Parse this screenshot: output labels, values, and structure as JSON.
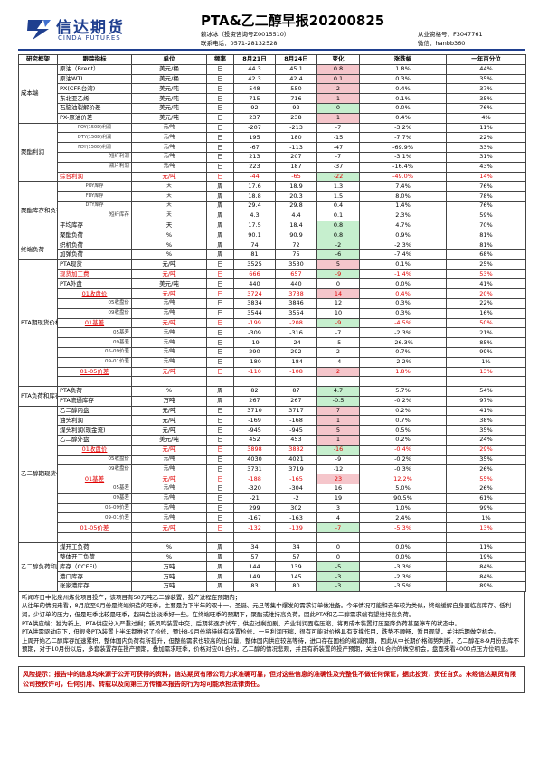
{
  "header": {
    "logo_cn": "信达期货",
    "logo_en": "CINDA FUTURES",
    "title": "PTA&乙二醇早报20200825",
    "analyst": "赖冰冰（投资咨询号Z0015510）",
    "phone": "联系电话：0571-28132528",
    "qualification": "从业资格号：F3047761",
    "wechat": "微信：hanbb360"
  },
  "columns": [
    "研究框架",
    "跟踪指标",
    "单位",
    "频率",
    "8月21日",
    "8月24日",
    "变化",
    "涨跌幅",
    "一年百分位"
  ],
  "rows": [
    {
      "cat": "成本端",
      "span": 6,
      "ind": "原油（Brent）",
      "u": "美元/桶",
      "f": "日",
      "a": "44.3",
      "b": "45.1",
      "c": "0.8",
      "d": "1.8%",
      "e": "44%",
      "cc": "pos"
    },
    {
      "ind": "原油WTI",
      "u": "美元/桶",
      "f": "日",
      "a": "42.3",
      "b": "42.4",
      "c": "0.1",
      "d": "0.3%",
      "e": "35%",
      "cc": "pos"
    },
    {
      "ind": "PX(CFR台湾)",
      "u": "美元/吨",
      "f": "日",
      "a": "548",
      "b": "550",
      "c": "2",
      "d": "0.4%",
      "e": "37%",
      "cc": "pos"
    },
    {
      "ind": "东北亚乙烯",
      "u": "美元/吨",
      "f": "日",
      "a": "715",
      "b": "716",
      "c": "1",
      "d": "0.1%",
      "e": "35%",
      "cc": "pos"
    },
    {
      "ind": "石脑油裂解价差",
      "u": "美元/吨",
      "f": "日",
      "a": "92",
      "b": "92",
      "c": "0",
      "d": "0.0%",
      "e": "76%",
      "cc": "zero"
    },
    {
      "ind": "PX-原油价差",
      "u": "美元/吨",
      "f": "日",
      "a": "237",
      "b": "238",
      "c": "1",
      "d": "0.4%",
      "e": "4%",
      "cc": "pos"
    },
    {
      "cat": "聚酯利润",
      "span": 6,
      "ind": "POY(150D)利润",
      "u": "元/吨",
      "f": "日",
      "a": "-207",
      "b": "-213",
      "c": "-7",
      "d": "-3.2%",
      "e": "11%",
      "cc": "",
      "sub": "sub"
    },
    {
      "ind": "DTY(150D)利润",
      "u": "元/吨",
      "f": "日",
      "a": "195",
      "b": "180",
      "c": "-15",
      "d": "-7.7%",
      "e": "22%",
      "cc": "",
      "sub": "sub"
    },
    {
      "ind": "FDY(150D)利润",
      "u": "元/吨",
      "f": "日",
      "a": "-67",
      "b": "-113",
      "c": "-47",
      "d": "-69.9%",
      "e": "33%",
      "cc": "",
      "sub": "sub"
    },
    {
      "ind": "短纤利润",
      "u": "元/吨",
      "f": "日",
      "a": "213",
      "b": "207",
      "c": "-7",
      "d": "-3.1%",
      "e": "31%",
      "cc": "",
      "sub": "sub-l"
    },
    {
      "ind": "瓶片利润",
      "u": "元/吨",
      "f": "日",
      "a": "223",
      "b": "187",
      "c": "-37",
      "d": "-16.4%",
      "e": "43%",
      "cc": "",
      "sub": "sub-l"
    },
    {
      "ind": "综合利润",
      "u": "元/吨",
      "f": "日",
      "a": "-44",
      "b": "-65",
      "c": "-22",
      "d": "-49.0%",
      "e": "14%",
      "cc": "neg",
      "red": true
    },
    {
      "cat": "聚酯库存和负荷",
      "span": 6,
      "ind": "POY库存",
      "u": "天",
      "f": "周",
      "a": "17.6",
      "b": "18.9",
      "c": "1.3",
      "d": "7.4%",
      "e": "76%",
      "cc": "",
      "sub": "sub"
    },
    {
      "ind": "FDY库存",
      "u": "天",
      "f": "周",
      "a": "18.8",
      "b": "20.3",
      "c": "1.5",
      "d": "8.0%",
      "e": "78%",
      "cc": "",
      "sub": "sub"
    },
    {
      "ind": "DTY库存",
      "u": "天",
      "f": "周",
      "a": "29.4",
      "b": "29.8",
      "c": "0.4",
      "d": "1.4%",
      "e": "76%",
      "cc": "",
      "sub": "sub"
    },
    {
      "ind": "短纤库存",
      "u": "天",
      "f": "周",
      "a": "4.3",
      "b": "4.4",
      "c": "0.1",
      "d": "2.3%",
      "e": "59%",
      "cc": "",
      "sub": "sub-l"
    },
    {
      "ind": "平均库存",
      "u": "天",
      "f": "周",
      "a": "17.5",
      "b": "18.4",
      "c": "0.8",
      "d": "4.7%",
      "e": "70%",
      "cc": "neg"
    },
    {
      "ind": "聚酯负荷",
      "u": "%",
      "f": "周",
      "a": "90.1",
      "b": "90.9",
      "c": "0.8",
      "d": "0.9%",
      "e": "81%",
      "cc": "neg"
    },
    {
      "cat": "终端负荷",
      "span": 2,
      "ind": "织机负荷",
      "u": "%",
      "f": "周",
      "a": "74",
      "b": "72",
      "c": "-2",
      "d": "-2.3%",
      "e": "81%",
      "cc": "neg"
    },
    {
      "ind": "加弹负荷",
      "u": "%",
      "f": "周",
      "a": "81",
      "b": "75",
      "c": "-6",
      "d": "-7.4%",
      "e": "68%",
      "cc": "neg"
    },
    {
      "cat": "PTA期现货价格和价差",
      "span": 13,
      "ind": "PTA现货",
      "u": "元/吨",
      "f": "日",
      "a": "3525",
      "b": "3530",
      "c": "5",
      "d": "0.1%",
      "e": "25%",
      "cc": "pos"
    },
    {
      "ind": "现货加工费",
      "u": "元/吨",
      "f": "日",
      "a": "666",
      "b": "657",
      "c": "-9",
      "d": "-1.4%",
      "e": "53%",
      "cc": "neg",
      "red": true
    },
    {
      "ind": "PTA外盘",
      "u": "美元/吨",
      "f": "日",
      "a": "440",
      "b": "440",
      "c": "0",
      "d": "0.0%",
      "e": "41%",
      "cc": ""
    },
    {
      "ind": "01收盘价",
      "u": "元/吨",
      "f": "日",
      "a": "3724",
      "b": "3738",
      "c": "14",
      "d": "0.4%",
      "e": "20%",
      "cc": "pos",
      "red": true,
      "ulr": true,
      "center": true
    },
    {
      "ind": "05收盘价",
      "u": "元/吨",
      "f": "日",
      "a": "3834",
      "b": "3846",
      "c": "12",
      "d": "0.3%",
      "e": "22%",
      "cc": "",
      "sub": "sub-l"
    },
    {
      "ind": "09收盘价",
      "u": "元/吨",
      "f": "日",
      "a": "3544",
      "b": "3554",
      "c": "10",
      "d": "0.3%",
      "e": "16%",
      "cc": "",
      "sub": "sub-l"
    },
    {
      "ind": "01基差",
      "u": "元/吨",
      "f": "日",
      "a": "-199",
      "b": "-208",
      "c": "-9",
      "d": "-4.5%",
      "e": "50%",
      "cc": "neg",
      "red": true,
      "ulr": true,
      "center": true
    },
    {
      "ind": "05基差",
      "u": "元/吨",
      "f": "日",
      "a": "-309",
      "b": "-316",
      "c": "-7",
      "d": "-2.3%",
      "e": "21%",
      "cc": "",
      "sub": "sub-l"
    },
    {
      "ind": "09基差",
      "u": "元/吨",
      "f": "日",
      "a": "-19",
      "b": "-24",
      "c": "-5",
      "d": "-26.3%",
      "e": "85%",
      "cc": "",
      "sub": "sub-l"
    },
    {
      "ind": "05-09价差",
      "u": "元/吨",
      "f": "日",
      "a": "290",
      "b": "292",
      "c": "2",
      "d": "0.7%",
      "e": "99%",
      "cc": "",
      "sub": "sub-l"
    },
    {
      "ind": "09-01价差",
      "u": "元/吨",
      "f": "日",
      "a": "-180",
      "b": "-184",
      "c": "-4",
      "d": "-2.2%",
      "e": "1%",
      "cc": "",
      "sub": "sub-l"
    },
    {
      "ind": "01-05价差",
      "u": "元/吨",
      "f": "日",
      "a": "-110",
      "b": "-108",
      "c": "2",
      "d": "1.8%",
      "e": "13%",
      "cc": "pos",
      "red": true,
      "ulr": true,
      "center": true
    },
    {
      "blank": true
    },
    {
      "cat": "PTA负荷和库存",
      "span": 2,
      "ind": "PTA负荷",
      "u": "%",
      "f": "周",
      "a": "82",
      "b": "87",
      "c": "4.7",
      "d": "5.7%",
      "e": "54%",
      "cc": "neg"
    },
    {
      "ind": "PTA流通库存",
      "u": "万吨",
      "f": "周",
      "a": "267",
      "b": "267",
      "c": "-0.5",
      "d": "-0.2%",
      "e": "97%",
      "cc": "neg"
    },
    {
      "cat": "乙二醇期现货价格和价差",
      "span": 14,
      "ind": "乙二醇内盘",
      "u": "元/吨",
      "f": "日",
      "a": "3710",
      "b": "3717",
      "c": "7",
      "d": "0.2%",
      "e": "41%",
      "cc": "pos"
    },
    {
      "ind": "油头利润",
      "u": "元/吨",
      "f": "日",
      "a": "-169",
      "b": "-168",
      "c": "1",
      "d": "0.7%",
      "e": "38%",
      "cc": "pos"
    },
    {
      "ind": "煤头利润(现金流)",
      "u": "元/吨",
      "f": "日",
      "a": "-945",
      "b": "-945",
      "c": "5",
      "d": "0.5%",
      "e": "35%",
      "cc": "pos"
    },
    {
      "ind": "乙二醇外盘",
      "u": "美元/吨",
      "f": "日",
      "a": "452",
      "b": "453",
      "c": "1",
      "d": "0.2%",
      "e": "24%",
      "cc": "pos"
    },
    {
      "ind": "01收盘价",
      "u": "元/吨",
      "f": "日",
      "a": "3898",
      "b": "3882",
      "c": "-16",
      "d": "-0.4%",
      "e": "29%",
      "cc": "neg",
      "red": true,
      "ulr": true,
      "center": true
    },
    {
      "ind": "05收盘价",
      "u": "元/吨",
      "f": "日",
      "a": "4030",
      "b": "4021",
      "c": "-9",
      "d": "-0.2%",
      "e": "35%",
      "cc": "",
      "sub": "sub-l"
    },
    {
      "ind": "09收盘价",
      "u": "元/吨",
      "f": "日",
      "a": "3731",
      "b": "3719",
      "c": "-12",
      "d": "-0.3%",
      "e": "26%",
      "cc": "",
      "sub": "sub-l"
    },
    {
      "ind": "01基差",
      "u": "元/吨",
      "f": "日",
      "a": "-188",
      "b": "-165",
      "c": "23",
      "d": "12.2%",
      "e": "55%",
      "cc": "pos",
      "red": true,
      "ulr": true,
      "center": true
    },
    {
      "ind": "05基差",
      "u": "元/吨",
      "f": "日",
      "a": "-320",
      "b": "-304",
      "c": "16",
      "d": "5.0%",
      "e": "26%",
      "cc": "",
      "sub": "sub-l"
    },
    {
      "ind": "09基差",
      "u": "元/吨",
      "f": "日",
      "a": "-21",
      "b": "-2",
      "c": "19",
      "d": "90.5%",
      "e": "61%",
      "cc": "",
      "sub": "sub-l"
    },
    {
      "ind": "05-09价差",
      "u": "元/吨",
      "f": "日",
      "a": "299",
      "b": "302",
      "c": "3",
      "d": "1.0%",
      "e": "99%",
      "cc": "",
      "sub": "sub-l"
    },
    {
      "ind": "09-01价差",
      "u": "元/吨",
      "f": "日",
      "a": "-167",
      "b": "-163",
      "c": "4",
      "d": "2.4%",
      "e": "1%",
      "cc": "",
      "sub": "sub-l"
    },
    {
      "ind": "01-05价差",
      "u": "元/吨",
      "f": "日",
      "a": "-132",
      "b": "-139",
      "c": "-7",
      "d": "-5.3%",
      "e": "13%",
      "cc": "neg",
      "red": true,
      "ulr": true,
      "center": true
    },
    {
      "blank": true
    },
    {
      "cat": "乙二醇负荷和库存",
      "span": 5,
      "ind": "煤开工负荷",
      "u": "%",
      "f": "周",
      "a": "34",
      "b": "34",
      "c": "0",
      "d": "0.0%",
      "e": "11%",
      "cc": ""
    },
    {
      "ind": "整体开工负荷",
      "u": "%",
      "f": "周",
      "a": "57",
      "b": "57",
      "c": "0",
      "d": "0.0%",
      "e": "19%",
      "cc": ""
    },
    {
      "ind": "库存（CCFEI）",
      "u": "万吨",
      "f": "周",
      "a": "144",
      "b": "139",
      "c": "-5",
      "d": "-3.3%",
      "e": "84%",
      "cc": "neg"
    },
    {
      "ind": "港口库存",
      "u": "万吨",
      "f": "周",
      "a": "149",
      "b": "145",
      "c": "-3",
      "d": "-2.3%",
      "e": "84%",
      "cc": "neg"
    },
    {
      "ind": "张家港库存",
      "u": "万吨",
      "f": "周",
      "a": "83",
      "b": "80",
      "c": "-3",
      "d": "-3.5%",
      "e": "89%",
      "cc": "neg"
    }
  ],
  "notes": "听闻昨日中化泉州炼化项目投产，该项目有50万吨乙二醇装置，投产进程在预期内；\n从往年的情况来看，8月底至9月份是终端织造的旺季，主要是为下半年的双十一、圣诞、元旦等集中爆发的需求订单做准备。今年情况可能和去年较为类似，终端缓解自身面临高库存、低利润，少订单的压力，但是旺季比较是旺季，起码会比淡季好一些。在终端旺季的预期下，聚酯或维持高负荷，因此PTA和乙二醇需求端有望维持高负荷。\nPTA供应端：独为新上，PTA供应分入严重过剩；新凤鸣装置中交，后期将逐步试车，供应过剩加剧，产业利润面临压缩，将再成本装置打压至降负荷甚至停车的状态中。\nPTA供需驱动向下，但很多PTA装置上半年都推迟了检修，预计8-9月份将持续有装置检修，一旦利润压缩，很有可能对价格具有支撑作用，跌势不顺畅，暂且观望，关注后期做空机会。\n上周开始乙二醇库存加速累积，整体国内负荷有所提升，但整船需求也较高的出口量，整体国内供应较高等待，进口存在国检的缩减预期，因此从中长期价格弱势判断，乙二醇在8-9月份去库不预期，对于10月份以后，多套装置存在投产预期，叠加需求旺季，价格对应01合约，乙二醇的情况悲观，并且有新装置的投产预期，关注01合约的做空机会，盘面来看4000点压力位明显。",
  "risk": "风险提示：报告中的信息均来源于公开可获得的资料，信达期货有限公司力求准确可靠，但对这些信息的准确性及完整性不做任何保证，据此投资，责任自负。未经信达期货有限公司授权许可，任何引用、转载以及向第三方传播本报告的行为均可能承担法律责任。"
}
